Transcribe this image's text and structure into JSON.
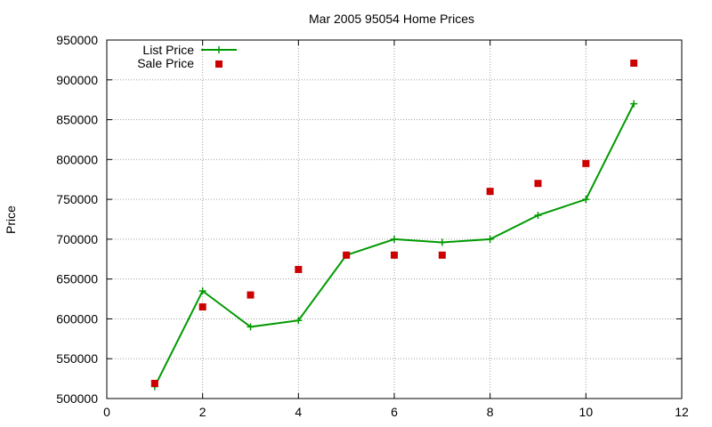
{
  "chart_data": {
    "type": "line",
    "title": "Mar 2005 95054 Home Prices",
    "xlabel": "",
    "ylabel": "Price",
    "xlim": [
      0,
      12
    ],
    "ylim": [
      500000,
      950000
    ],
    "x_ticks": [
      0,
      2,
      4,
      6,
      8,
      10,
      12
    ],
    "y_ticks": [
      500000,
      550000,
      600000,
      650000,
      700000,
      750000,
      800000,
      850000,
      900000,
      950000
    ],
    "grid": true,
    "legend_position": "top-left",
    "series": [
      {
        "name": "List Price",
        "style": "linespoints",
        "color": "#009900",
        "x": [
          1,
          2,
          3,
          4,
          5,
          6,
          7,
          8,
          9,
          10,
          11
        ],
        "y": [
          515000,
          635000,
          590000,
          598000,
          680000,
          700000,
          696000,
          700000,
          730000,
          750000,
          870000
        ]
      },
      {
        "name": "Sale Price",
        "style": "points",
        "color": "#cc0000",
        "x": [
          1,
          2,
          3,
          4,
          5,
          6,
          7,
          8,
          9,
          10,
          11
        ],
        "y": [
          519000,
          615000,
          630000,
          662000,
          680000,
          680000,
          680000,
          760000,
          770000,
          795000,
          921000
        ]
      }
    ]
  }
}
